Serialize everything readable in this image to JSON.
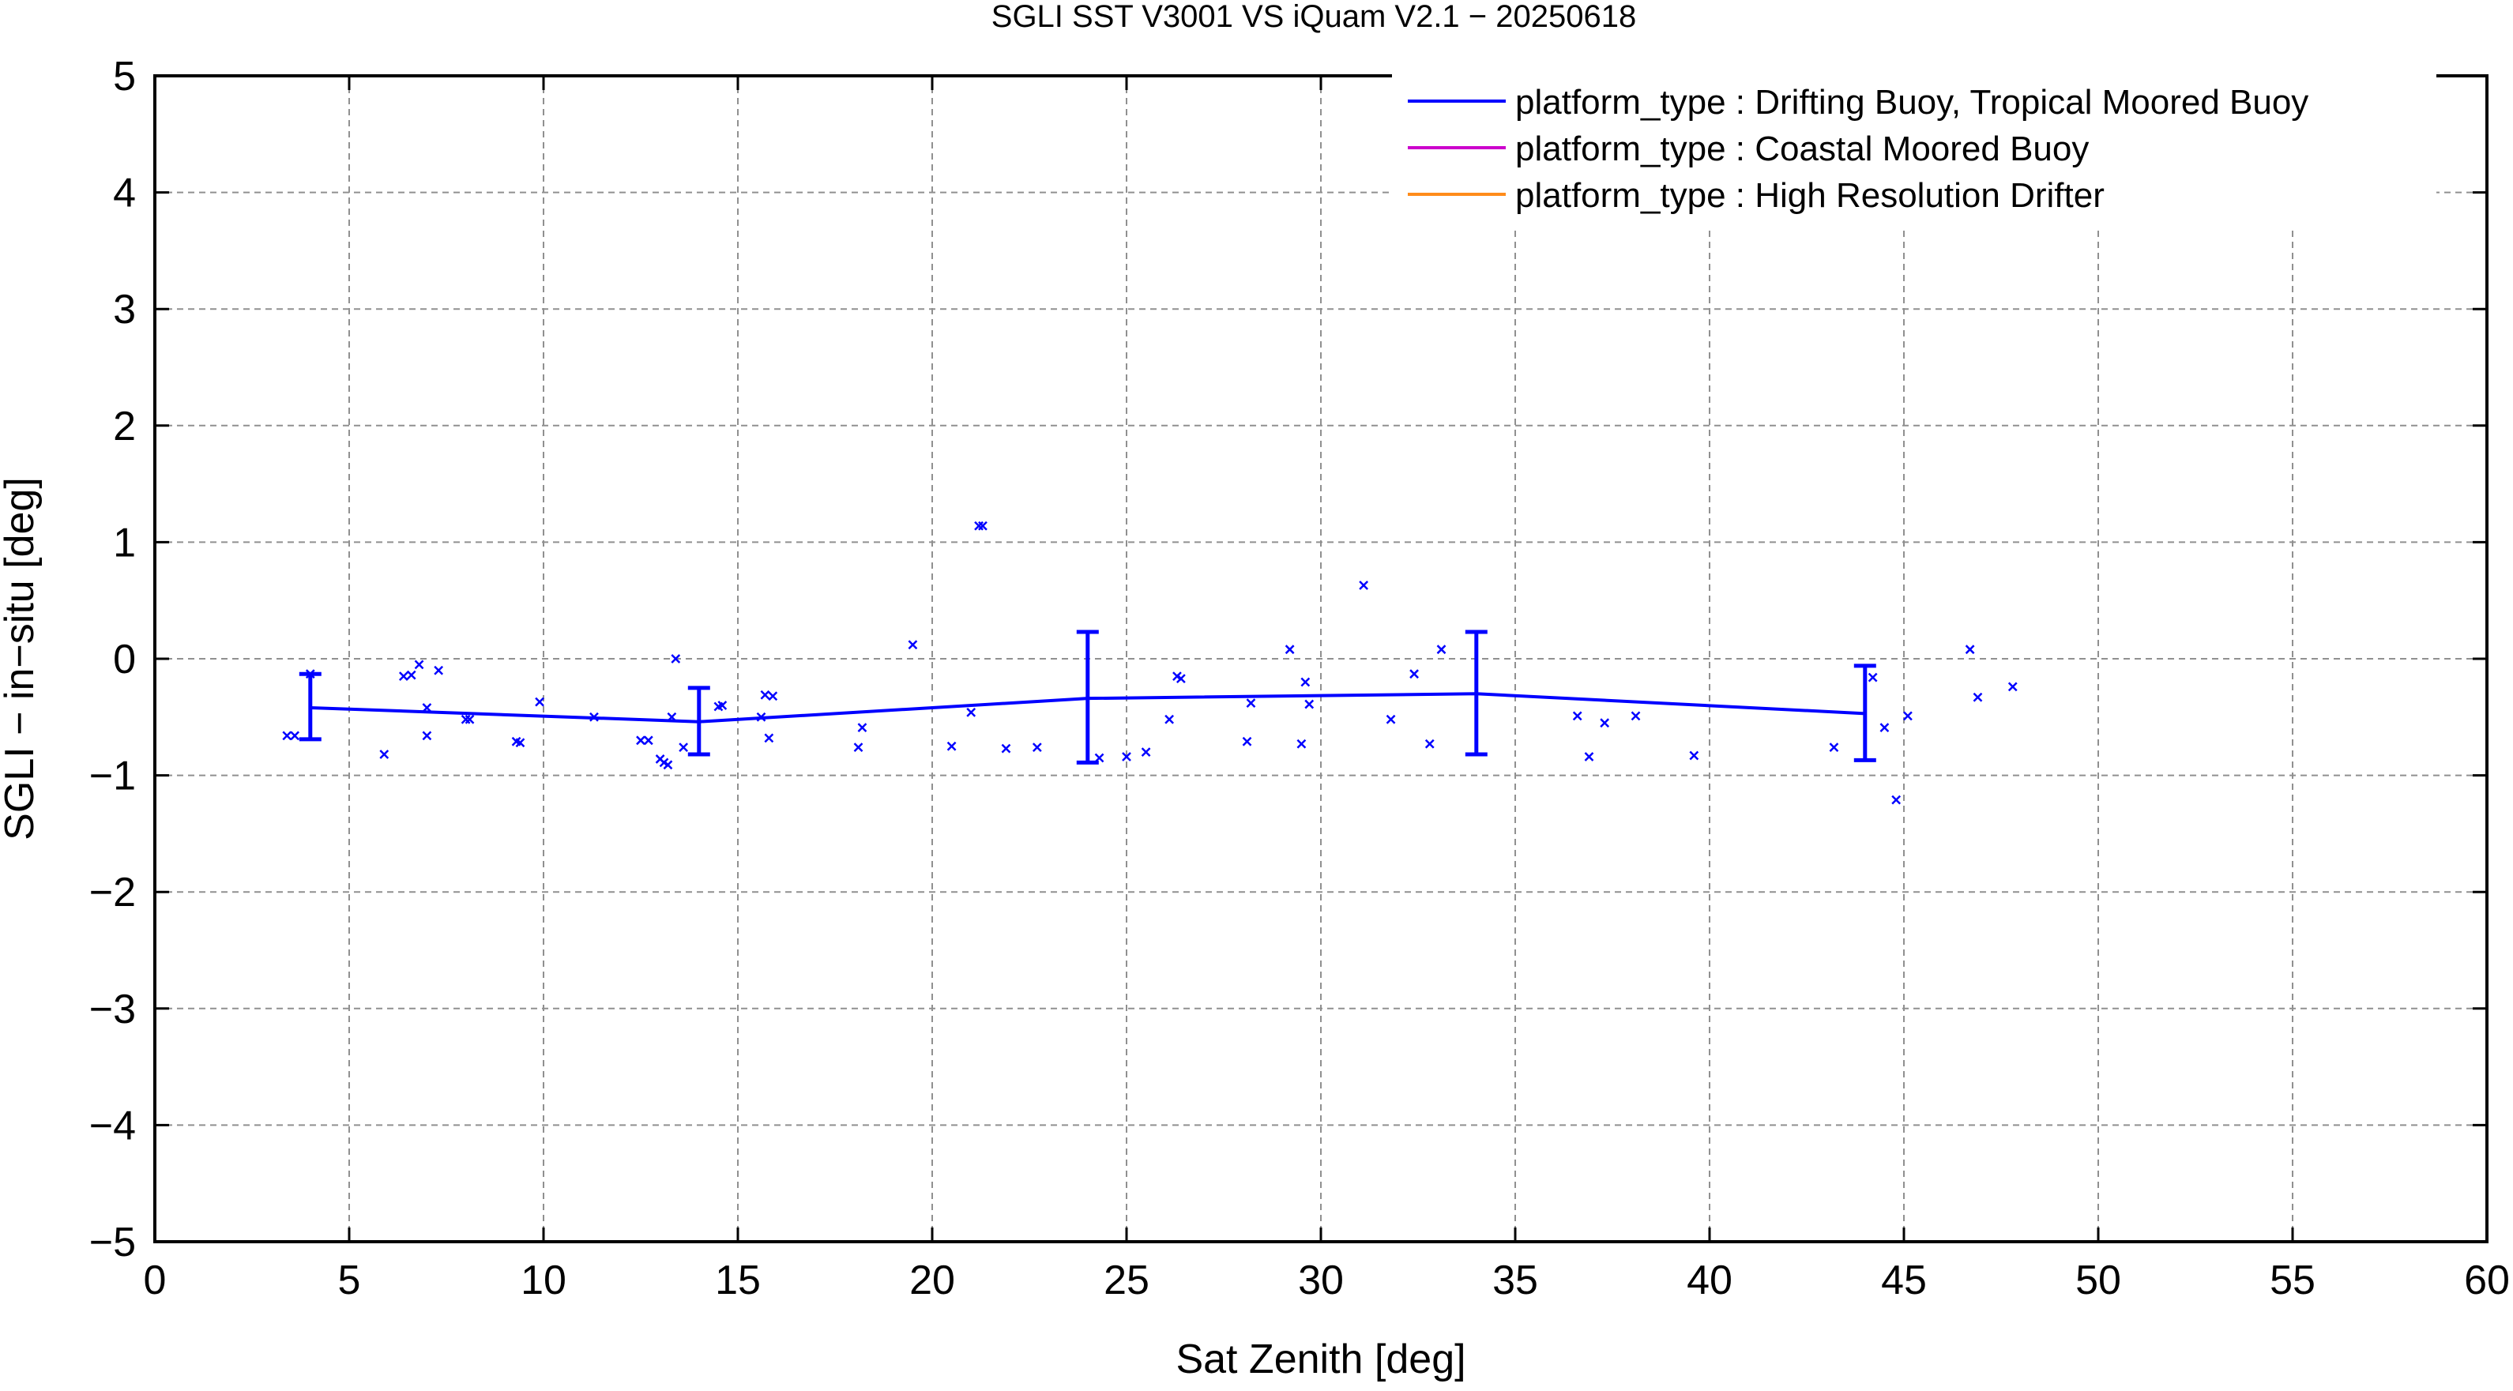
{
  "chart_data": {
    "type": "line",
    "title": "SGLI SST V3001 VS iQuam V2.1  − 20250618",
    "xlabel": "Sat Zenith [deg]",
    "ylabel": "SGLI − in−situ [deg]",
    "xlim": [
      0,
      60
    ],
    "ylim": [
      -5,
      5
    ],
    "x_ticks": [
      0,
      5,
      10,
      15,
      20,
      25,
      30,
      35,
      40,
      45,
      50,
      55,
      60
    ],
    "x_tick_labels": [
      "0",
      "5",
      "10",
      "15",
      "20",
      "25",
      "30",
      "35",
      "40",
      "45",
      "50",
      "55",
      "60"
    ],
    "y_ticks": [
      -5,
      -4,
      -3,
      -2,
      -1,
      0,
      1,
      2,
      3,
      4,
      5
    ],
    "y_tick_labels": [
      "−5",
      "−4",
      "−3",
      "−2",
      "−1",
      "0",
      "1",
      "2",
      "3",
      "4",
      "5"
    ],
    "grid": true,
    "legend_position": "top-right",
    "legend": [
      {
        "label": "platform_type : Drifting Buoy, Tropical Moored Buoy",
        "color": "#0000ff"
      },
      {
        "label": "platform_type : Coastal Moored Buoy",
        "color": "#cc00cc"
      },
      {
        "label": "platform_type : High Resolution Drifter",
        "color": "#ff8c1a"
      }
    ],
    "mean_line": {
      "color": "#0000ff",
      "x": [
        4,
        14,
        24,
        34,
        44
      ],
      "y": [
        -0.42,
        -0.54,
        -0.34,
        -0.3,
        -0.47
      ],
      "err_low": [
        -0.69,
        -0.82,
        -0.89,
        -0.82,
        -0.87
      ],
      "err_high": [
        -0.13,
        -0.25,
        0.23,
        0.23,
        -0.06
      ]
    },
    "scatter": {
      "color": "#0000ff",
      "marker": "x",
      "points": [
        [
          3.4,
          -0.66
        ],
        [
          3.6,
          -0.66
        ],
        [
          4.0,
          -0.13
        ],
        [
          5.9,
          -0.82
        ],
        [
          6.4,
          -0.15
        ],
        [
          6.6,
          -0.14
        ],
        [
          6.8,
          -0.05
        ],
        [
          7.0,
          -0.66
        ],
        [
          7.0,
          -0.42
        ],
        [
          7.3,
          -0.1
        ],
        [
          8.0,
          -0.52
        ],
        [
          8.1,
          -0.52
        ],
        [
          9.3,
          -0.71
        ],
        [
          9.4,
          -0.72
        ],
        [
          9.9,
          -0.37
        ],
        [
          11.3,
          -0.5
        ],
        [
          12.5,
          -0.7
        ],
        [
          12.7,
          -0.7
        ],
        [
          13.0,
          -0.86
        ],
        [
          13.1,
          -0.89
        ],
        [
          13.2,
          -0.91
        ],
        [
          13.3,
          -0.5
        ],
        [
          13.4,
          0.0
        ],
        [
          13.6,
          -0.76
        ],
        [
          14.5,
          -0.41
        ],
        [
          14.6,
          -0.4
        ],
        [
          15.6,
          -0.5
        ],
        [
          15.7,
          -0.31
        ],
        [
          15.8,
          -0.68
        ],
        [
          15.9,
          -0.32
        ],
        [
          18.1,
          -0.76
        ],
        [
          18.2,
          -0.59
        ],
        [
          19.5,
          0.12
        ],
        [
          20.5,
          -0.75
        ],
        [
          21.0,
          -0.46
        ],
        [
          21.2,
          1.14
        ],
        [
          21.3,
          1.14
        ],
        [
          21.9,
          -0.77
        ],
        [
          22.7,
          -0.76
        ],
        [
          24.3,
          -0.85
        ],
        [
          25.0,
          -0.84
        ],
        [
          25.5,
          -0.8
        ],
        [
          26.1,
          -0.52
        ],
        [
          26.3,
          -0.15
        ],
        [
          26.4,
          -0.17
        ],
        [
          28.1,
          -0.71
        ],
        [
          28.2,
          -0.38
        ],
        [
          29.2,
          0.08
        ],
        [
          29.5,
          -0.73
        ],
        [
          29.6,
          -0.2
        ],
        [
          29.7,
          -0.39
        ],
        [
          31.1,
          0.63
        ],
        [
          31.8,
          -0.52
        ],
        [
          32.4,
          -0.13
        ],
        [
          32.8,
          -0.73
        ],
        [
          33.1,
          0.08
        ],
        [
          36.6,
          -0.49
        ],
        [
          36.9,
          -0.84
        ],
        [
          37.3,
          -0.55
        ],
        [
          38.1,
          -0.49
        ],
        [
          39.6,
          -0.83
        ],
        [
          43.2,
          -0.76
        ],
        [
          44.2,
          -0.16
        ],
        [
          44.5,
          -0.59
        ],
        [
          44.8,
          -1.21
        ],
        [
          45.1,
          -0.49
        ],
        [
          46.7,
          0.08
        ],
        [
          46.9,
          -0.33
        ],
        [
          47.8,
          -0.24
        ]
      ]
    }
  }
}
